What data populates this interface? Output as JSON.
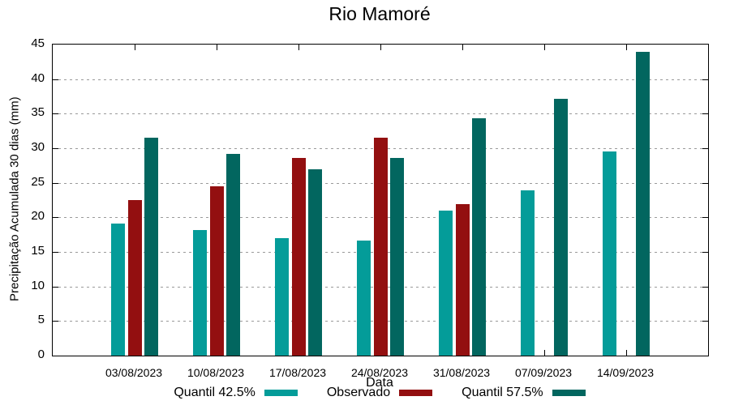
{
  "title": "Rio Mamoré",
  "colors": {
    "background": "#ffffff",
    "frame": "#000000",
    "grid": "#9a9a9a",
    "text": "#000000",
    "quantil_42_5": "#049c99",
    "observado": "#930f10",
    "quantil_57_5": "#02665f"
  },
  "chart_data": {
    "type": "bar",
    "title": "Rio Mamoré",
    "xlabel": "Data",
    "ylabel": "Precipitação Acumulada 30 dias (mm)",
    "ylim": [
      0,
      45
    ],
    "yticks": [
      0,
      5,
      10,
      15,
      20,
      25,
      30,
      35,
      40,
      45
    ],
    "grid": "horizontal-dotted",
    "legend_position": "bottom-center",
    "categories": [
      "03/08/2023",
      "10/08/2023",
      "17/08/2023",
      "24/08/2023",
      "31/08/2023",
      "07/09/2023",
      "14/09/2023"
    ],
    "series": [
      {
        "name": "Quantil 42.5%",
        "color": "#049c99",
        "values": [
          19.1,
          18.2,
          17.0,
          16.7,
          21.0,
          23.9,
          29.5
        ]
      },
      {
        "name": "Observado",
        "color": "#930f10",
        "values": [
          22.5,
          24.5,
          28.6,
          31.5,
          21.9,
          null,
          null
        ]
      },
      {
        "name": "Quantil 57.5%",
        "color": "#02665f",
        "values": [
          31.5,
          29.2,
          27.0,
          28.6,
          34.3,
          37.1,
          44.0
        ]
      }
    ]
  }
}
